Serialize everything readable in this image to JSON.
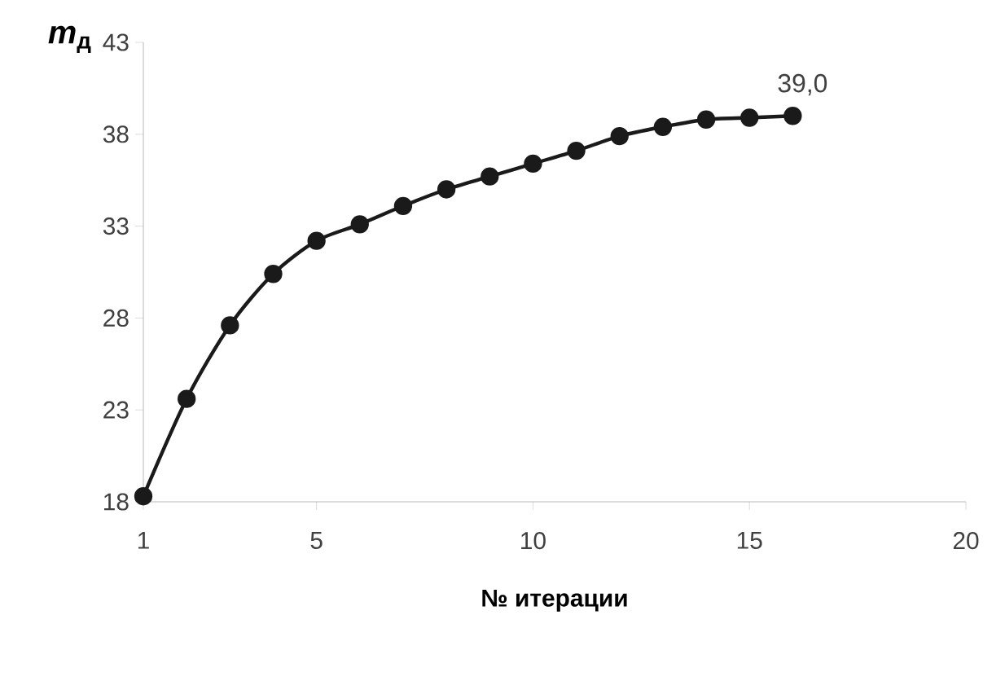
{
  "chart_data": {
    "type": "line",
    "ylabel": "*m*$_{д}$",
    "xlabel": "№ итерации",
    "x": [
      1,
      2,
      3,
      4,
      5,
      6,
      7,
      8,
      9,
      10,
      11,
      12,
      13,
      14,
      15,
      16
    ],
    "series": [
      {
        "color": "#1a1a1a",
        "values": [
          18.3,
          23.6,
          27.6,
          30.4,
          32.2,
          33.1,
          34.1,
          35.0,
          35.7,
          36.4,
          37.1,
          37.9,
          38.4,
          38.8,
          38.9,
          39.0
        ]
      }
    ],
    "xlim": [
      1,
      20
    ],
    "ylim": [
      18,
      43
    ],
    "xticks": [
      1,
      5,
      10,
      15,
      20
    ],
    "yticks": [
      18,
      23,
      28,
      33,
      38,
      43
    ],
    "annotations": [
      {
        "text": "39,0",
        "x": 16,
        "y": 39.0
      }
    ],
    "marker": "circle",
    "line_style": "solid"
  }
}
